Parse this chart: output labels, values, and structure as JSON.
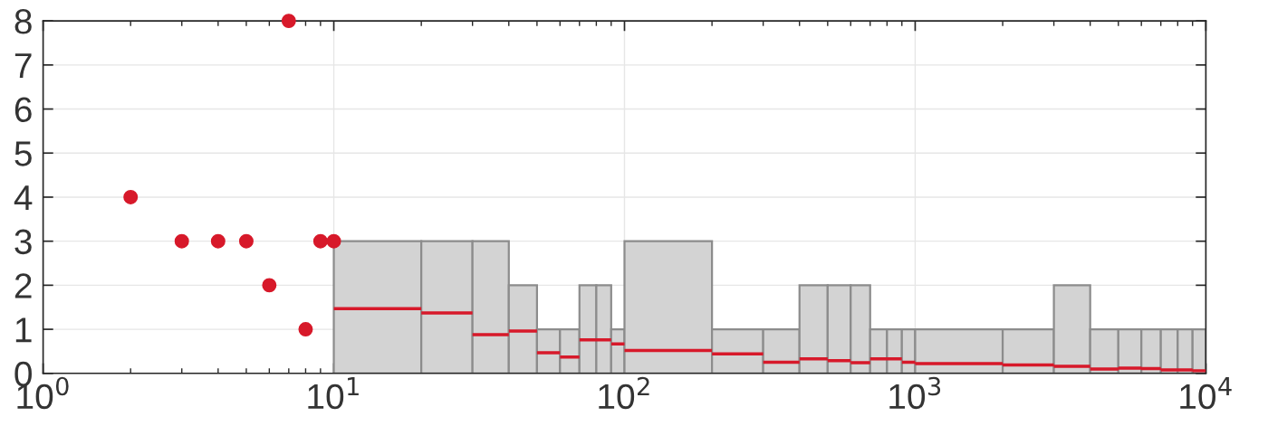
{
  "chart_data": {
    "type": "histogram",
    "xlim": [
      1,
      10000
    ],
    "ylim": [
      0,
      8
    ],
    "log": "x",
    "xticks": [
      {
        "value": 1,
        "label": "10$^{0}$"
      },
      {
        "value": 10,
        "label": "10$^{1}$"
      },
      {
        "value": 100,
        "label": "10$^{2}$"
      },
      {
        "value": 1000,
        "label": "10$^{3}$"
      },
      {
        "value": 10000,
        "label": "10$^{4}$"
      }
    ],
    "yticks": [
      0,
      1,
      2,
      3,
      4,
      5,
      6,
      7,
      8
    ],
    "grid": true,
    "series": [
      {
        "type": "histogram",
        "color": "#d3d3d3",
        "bins": [
          10,
          20,
          30,
          40,
          50,
          60,
          70,
          80,
          90,
          100,
          200,
          300,
          400,
          500,
          600,
          700,
          800,
          900,
          1000,
          2000,
          3000,
          4000,
          5000,
          6000,
          7000,
          8000,
          9000,
          10000
        ],
        "values": [
          3,
          3,
          3,
          2,
          1,
          1,
          2,
          2,
          1,
          3,
          1,
          1,
          2,
          2,
          2,
          1,
          1,
          1,
          1,
          1,
          2,
          1,
          1,
          1,
          1,
          1,
          1
        ]
      },
      {
        "type": "line",
        "color": "#d7192a",
        "x": [
          10,
          20,
          null,
          20,
          30,
          null,
          30,
          40,
          null,
          40,
          50,
          null,
          50,
          60,
          null,
          60,
          70,
          null,
          70,
          80,
          null,
          80,
          90,
          null,
          90,
          100,
          null,
          100,
          200,
          null,
          200,
          300,
          null,
          300,
          400,
          null,
          400,
          500,
          null,
          500,
          600,
          null,
          600,
          700,
          null,
          700,
          800,
          null,
          800,
          900,
          null,
          900,
          1000,
          null,
          1000,
          2000,
          null,
          2000,
          3000,
          null,
          3000,
          4000,
          null,
          4000,
          5000,
          null,
          5000,
          6000,
          null,
          6000,
          7000,
          null,
          7000,
          8000,
          null,
          8000,
          9000,
          null,
          9000,
          10000
        ],
        "values": [
          1.47,
          1.47,
          null,
          1.37,
          1.37,
          null,
          0.88,
          0.88,
          null,
          0.96,
          0.96,
          null,
          0.47,
          0.47,
          null,
          0.37,
          0.37,
          null,
          0.76,
          0.76,
          null,
          0.76,
          0.76,
          null,
          0.67,
          0.67,
          null,
          0.52,
          0.52,
          null,
          0.44,
          0.44,
          null,
          0.25,
          0.25,
          null,
          0.33,
          0.33,
          null,
          0.29,
          0.29,
          null,
          0.24,
          0.24,
          null,
          0.33,
          0.33,
          null,
          0.33,
          0.33,
          null,
          0.25,
          0.25,
          null,
          0.22,
          0.22,
          null,
          0.19,
          0.19,
          null,
          0.16,
          0.16,
          null,
          0.1,
          0.1,
          null,
          0.12,
          0.12,
          null,
          0.11,
          0.11,
          null,
          0.08,
          0.08,
          null,
          0.08,
          0.08,
          null,
          0.06,
          0.06
        ]
      },
      {
        "type": "scatter",
        "color": "#d7192a",
        "marker": "circle",
        "x": [
          2,
          3,
          4,
          5,
          6,
          7,
          8,
          9,
          10
        ],
        "values": [
          4,
          3,
          3,
          3,
          2,
          8,
          1,
          3,
          3
        ]
      }
    ]
  }
}
